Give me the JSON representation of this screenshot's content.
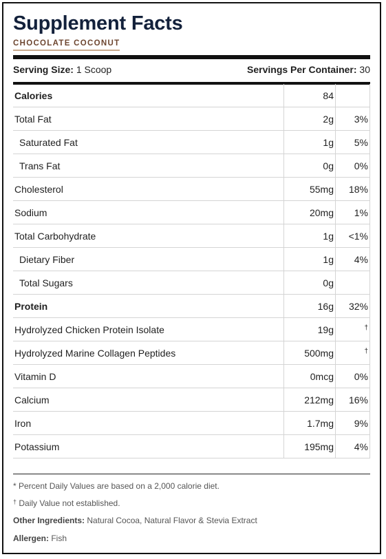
{
  "title": "Supplement Facts",
  "flavor": "CHOCOLATE COCONUT",
  "serving": {
    "size_label": "Serving Size:",
    "size_value": "1 Scoop",
    "per_container_label": "Servings Per Container:",
    "per_container_value": "30"
  },
  "rows": [
    {
      "name": "Calories",
      "amount": "84",
      "dv": "",
      "bold": true,
      "indent": false
    },
    {
      "name": "Total Fat",
      "amount": "2g",
      "dv": "3%",
      "bold": false,
      "indent": false
    },
    {
      "name": "Saturated Fat",
      "amount": "1g",
      "dv": "5%",
      "bold": false,
      "indent": true
    },
    {
      "name": "Trans Fat",
      "amount": "0g",
      "dv": "0%",
      "bold": false,
      "indent": true
    },
    {
      "name": "Cholesterol",
      "amount": "55mg",
      "dv": "18%",
      "bold": false,
      "indent": false
    },
    {
      "name": "Sodium",
      "amount": "20mg",
      "dv": "1%",
      "bold": false,
      "indent": false
    },
    {
      "name": "Total Carbohydrate",
      "amount": "1g",
      "dv": "<1%",
      "bold": false,
      "indent": false
    },
    {
      "name": "Dietary Fiber",
      "amount": "1g",
      "dv": "4%",
      "bold": false,
      "indent": true
    },
    {
      "name": "Total Sugars",
      "amount": "0g",
      "dv": "",
      "bold": false,
      "indent": true
    },
    {
      "name": "Protein",
      "amount": "16g",
      "dv": "32%",
      "bold": true,
      "indent": false
    },
    {
      "name": "Hydrolyzed Chicken Protein Isolate",
      "amount": "19g",
      "dv": "†",
      "bold": false,
      "indent": false
    },
    {
      "name": "Hydrolyzed Marine Collagen Peptides",
      "amount": "500mg",
      "dv": "†",
      "bold": false,
      "indent": false
    },
    {
      "name": "Vitamin D",
      "amount": "0mcg",
      "dv": "0%",
      "bold": false,
      "indent": false
    },
    {
      "name": "Calcium",
      "amount": "212mg",
      "dv": "16%",
      "bold": false,
      "indent": false
    },
    {
      "name": "Iron",
      "amount": "1.7mg",
      "dv": "9%",
      "bold": false,
      "indent": false
    },
    {
      "name": "Potassium",
      "amount": "195mg",
      "dv": "4%",
      "bold": false,
      "indent": false
    }
  ],
  "footnotes": {
    "percent_dv": "* Percent Daily Values are based on a 2,000 calorie diet.",
    "dagger_mark": "†",
    "dagger_text": " Daily Value not established.",
    "ingredients_label": "Other Ingredients:",
    "ingredients_value": " Natural Cocoa, Natural Flavor & Stevia Extract",
    "allergen_label": "Allergen:",
    "allergen_value": " Fish"
  }
}
